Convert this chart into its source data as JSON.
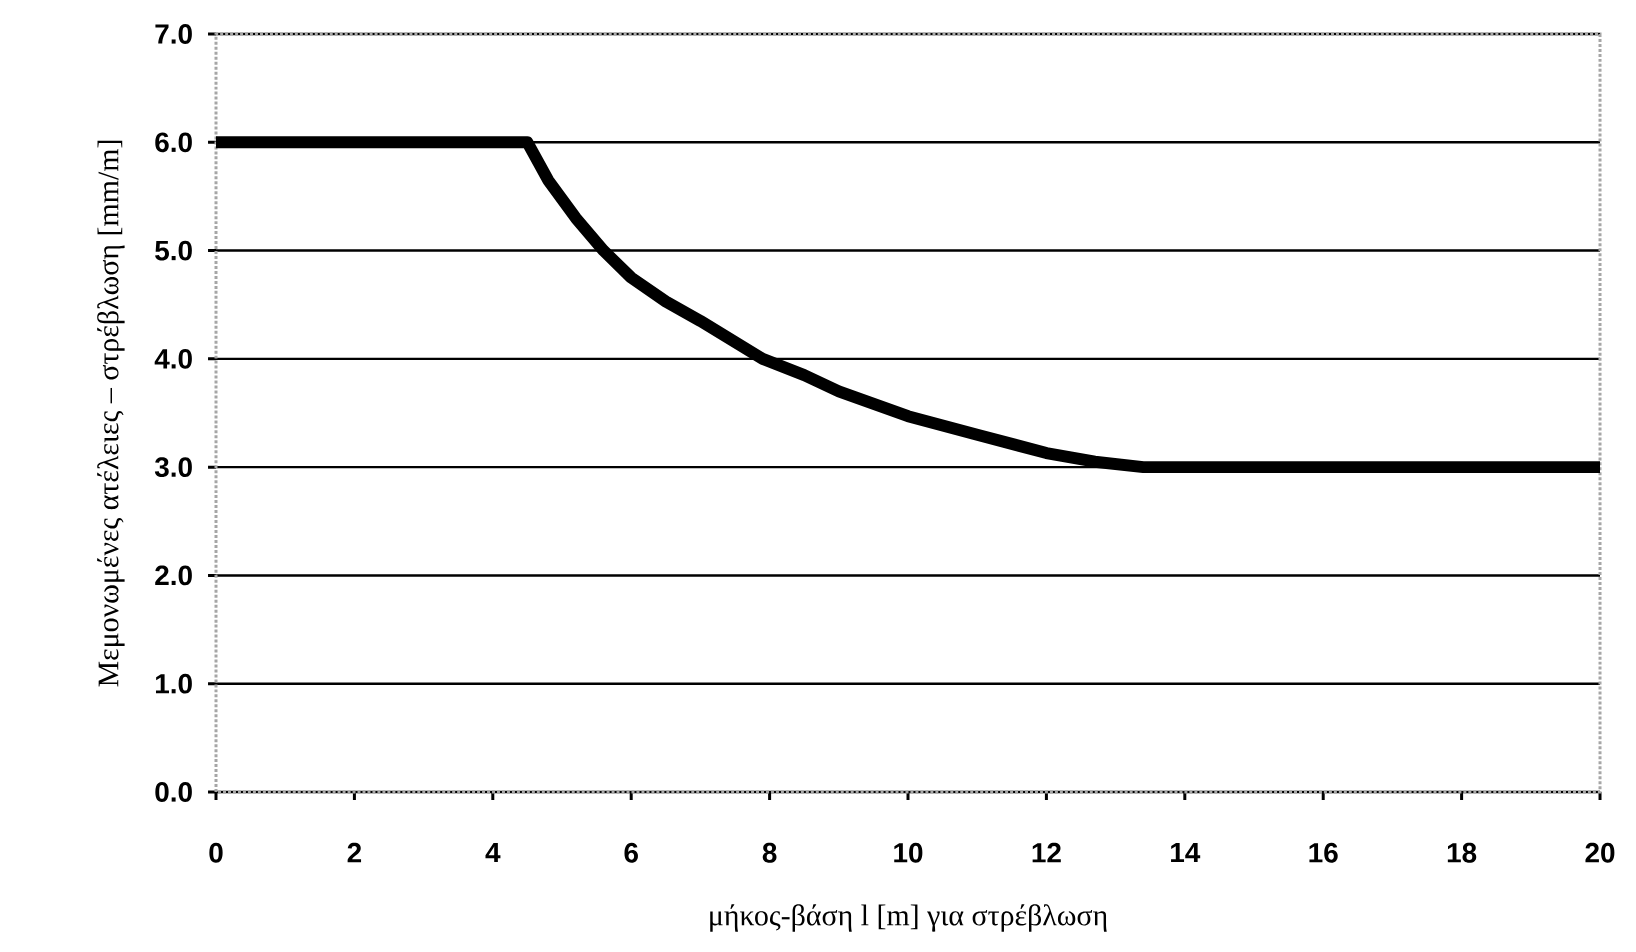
{
  "chart_data": {
    "type": "line",
    "xlabel": "μήκος-βάση l [m] για στρέβλωση",
    "ylabel": "Μεμονωμένες ατέλειες – στρέβλωση [mm/m]",
    "series": [
      {
        "color": "#000000",
        "x": [
          0,
          4.5,
          4.8,
          5.2,
          5.6,
          6,
          6.5,
          7,
          7.9,
          8.5,
          9,
          10,
          11,
          12,
          12.7,
          13.4,
          20
        ],
        "values": [
          6,
          6,
          5.65,
          5.3,
          5,
          4.75,
          4.53,
          4.35,
          4,
          3.85,
          3.7,
          3.47,
          3.3,
          3.13,
          3.05,
          3,
          3
        ]
      }
    ],
    "xlim": [
      0,
      20
    ],
    "xticks": [
      0,
      2,
      4,
      6,
      8,
      10,
      12,
      14,
      16,
      18,
      20
    ],
    "ylim": [
      0,
      7
    ],
    "yticks": [
      {
        "value": 0,
        "label": "0.0"
      },
      {
        "value": 1,
        "label": "1.0"
      },
      {
        "value": 2,
        "label": "2.0"
      },
      {
        "value": 3,
        "label": "3.0"
      },
      {
        "value": 4,
        "label": "4.0"
      },
      {
        "value": 5,
        "label": "5.0"
      },
      {
        "value": 6,
        "label": "6.0"
      },
      {
        "value": 7,
        "label": "7.0"
      }
    ],
    "grid": "y",
    "marker": "none",
    "line_style": "solid"
  }
}
